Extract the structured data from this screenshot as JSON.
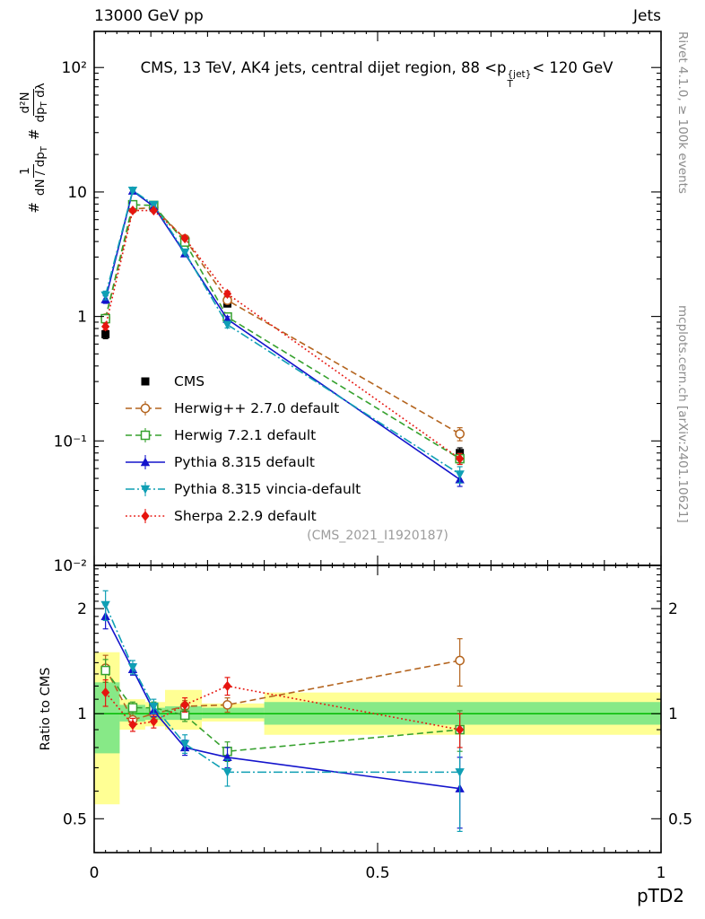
{
  "header": {
    "left": "13000 GeV pp",
    "right": "Jets"
  },
  "title": {
    "pre": "CMS, 13 TeV, AK4 jets, central dijet region, 88 <p",
    "sup": "{jet}",
    "sub": "T",
    "post": "< 120 GeV"
  },
  "ylabel_main": {
    "hash1": "#",
    "f1_num": "1",
    "f1_den": "dN / dp",
    "f1_den_sub": "T",
    "hash2": "#",
    "f2_num": "d²N",
    "f2_den": "dp",
    "f2_den_sub": "T",
    "f2_den_post": " dλ"
  },
  "ylabel_ratio": "Ratio to CMS",
  "xlabel": "pTD2",
  "watermark": "(CMS_2021_I1920187)",
  "side_notes": {
    "top_right": "Rivet 4.1.0, ≥ 100k events",
    "bottom_right": "mcplots.cern.ch [arXiv:2401.10621]"
  },
  "chart_data": {
    "type": "line",
    "title": "CMS, 13 TeV, AK4 jets, central dijet region, 88 <pT{jet}< 120 GeV",
    "xlabel": "pTD2",
    "ylabel": "# 1/(dN/dpT) d²N/(dpT dλ)",
    "ylabel_ratio": "Ratio to CMS",
    "xlim": [
      0,
      1
    ],
    "ylim_main": [
      0.01,
      195
    ],
    "ylim_ratio": [
      0.4,
      2.66
    ],
    "x": [
      0.02,
      0.068,
      0.105,
      0.16,
      0.235,
      0.645
    ],
    "x_ticks": [
      {
        "v": 0,
        "label": "0"
      },
      {
        "v": 0.5,
        "label": "0.5"
      },
      {
        "v": 1,
        "label": "1"
      }
    ],
    "y_ticks_main": [
      {
        "v": 100,
        "label": "10²"
      },
      {
        "v": 10,
        "label": "10"
      },
      {
        "v": 1,
        "label": "1"
      },
      {
        "v": 0.1,
        "label": "10⁻¹"
      },
      {
        "v": 0.01,
        "label": "10⁻²"
      }
    ],
    "y_ticks_ratio": [
      {
        "v": 2,
        "label": "2"
      },
      {
        "v": 1,
        "label": "1"
      },
      {
        "v": 0.5,
        "label": "0.5"
      }
    ],
    "band_colors": {
      "yellow": "#ffff94",
      "green": "#87e987",
      "refline": "#00bb00"
    },
    "ratio_bands": {
      "edges": [
        0,
        0.045,
        0.09,
        0.125,
        0.19,
        0.3,
        1.0
      ],
      "yellow": [
        [
          0.55,
          1.5
        ],
        [
          0.9,
          1.1
        ],
        [
          0.92,
          1.08
        ],
        [
          0.9,
          1.17
        ],
        [
          0.95,
          1.07
        ],
        [
          0.87,
          1.15
        ]
      ],
      "green": [
        [
          0.77,
          1.23
        ],
        [
          0.95,
          1.06
        ],
        [
          0.96,
          1.04
        ],
        [
          0.96,
          1.05
        ],
        [
          0.97,
          1.04
        ],
        [
          0.93,
          1.08
        ]
      ]
    },
    "series": [
      {
        "id": "cms",
        "name": "CMS",
        "color": "#000000",
        "marker": "square",
        "line": "none",
        "values": [
          0.72,
          7.6,
          7.5,
          4.0,
          1.27,
          0.08
        ],
        "err_rel": [
          0.08,
          0.04,
          0.04,
          0.04,
          0.06,
          0.1
        ],
        "ratio": null,
        "ratio_err": null
      },
      {
        "id": "herwigpp",
        "name": "Herwig++ 2.7.0 default",
        "color": "#b4641e",
        "marker": "circle-open",
        "line": "dashed",
        "values": [
          0.97,
          7.3,
          7.5,
          4.2,
          1.35,
          0.114
        ],
        "err_rel": [
          0.06,
          0.03,
          0.03,
          0.03,
          0.04,
          0.12
        ],
        "ratio": [
          1.35,
          0.96,
          1.0,
          1.05,
          1.06,
          1.42
        ],
        "ratio_err": [
          0.12,
          0.04,
          0.04,
          0.04,
          0.05,
          0.22
        ]
      },
      {
        "id": "herwig7",
        "name": "Herwig 7.2.1 default",
        "color": "#36a12e",
        "marker": "square-open",
        "line": "dashed",
        "values": [
          0.96,
          7.9,
          7.8,
          3.96,
          0.99,
          0.072
        ],
        "err_rel": [
          0.06,
          0.03,
          0.03,
          0.03,
          0.05,
          0.1
        ],
        "ratio": [
          1.33,
          1.04,
          1.04,
          0.99,
          0.78,
          0.9
        ],
        "ratio_err": [
          0.1,
          0.04,
          0.04,
          0.04,
          0.05,
          0.12
        ]
      },
      {
        "id": "pythia",
        "name": "Pythia 8.315 default",
        "color": "#1414cc",
        "marker": "triangle-up",
        "line": "solid",
        "values": [
          1.37,
          10.2,
          7.65,
          3.2,
          0.95,
          0.049
        ],
        "err_rel": [
          0.07,
          0.03,
          0.03,
          0.03,
          0.05,
          0.12
        ],
        "ratio": [
          1.9,
          1.34,
          1.02,
          0.8,
          0.75,
          0.61
        ],
        "ratio_err": [
          0.15,
          0.05,
          0.04,
          0.04,
          0.05,
          0.14
        ]
      },
      {
        "id": "vincia",
        "name": "Pythia 8.315 vincia-default",
        "color": "#0f9fb4",
        "marker": "triangle-down",
        "line": "dashdot",
        "values": [
          1.48,
          10.3,
          7.9,
          3.28,
          0.86,
          0.054
        ],
        "err_rel": [
          0.08,
          0.03,
          0.03,
          0.03,
          0.06,
          0.15
        ],
        "ratio": [
          2.05,
          1.36,
          1.05,
          0.82,
          0.68,
          0.68
        ],
        "ratio_err": [
          0.2,
          0.06,
          0.05,
          0.05,
          0.06,
          0.22
        ]
      },
      {
        "id": "sherpa",
        "name": "Sherpa 2.2.9 default",
        "color": "#e6150f",
        "marker": "diamond",
        "line": "dotted",
        "values": [
          0.83,
          7.1,
          7.1,
          4.24,
          1.52,
          0.072
        ],
        "err_rel": [
          0.06,
          0.03,
          0.03,
          0.03,
          0.05,
          0.1
        ],
        "ratio": [
          1.15,
          0.93,
          0.95,
          1.06,
          1.2,
          0.9
        ],
        "ratio_err": [
          0.1,
          0.04,
          0.04,
          0.05,
          0.07,
          0.1
        ]
      }
    ]
  }
}
